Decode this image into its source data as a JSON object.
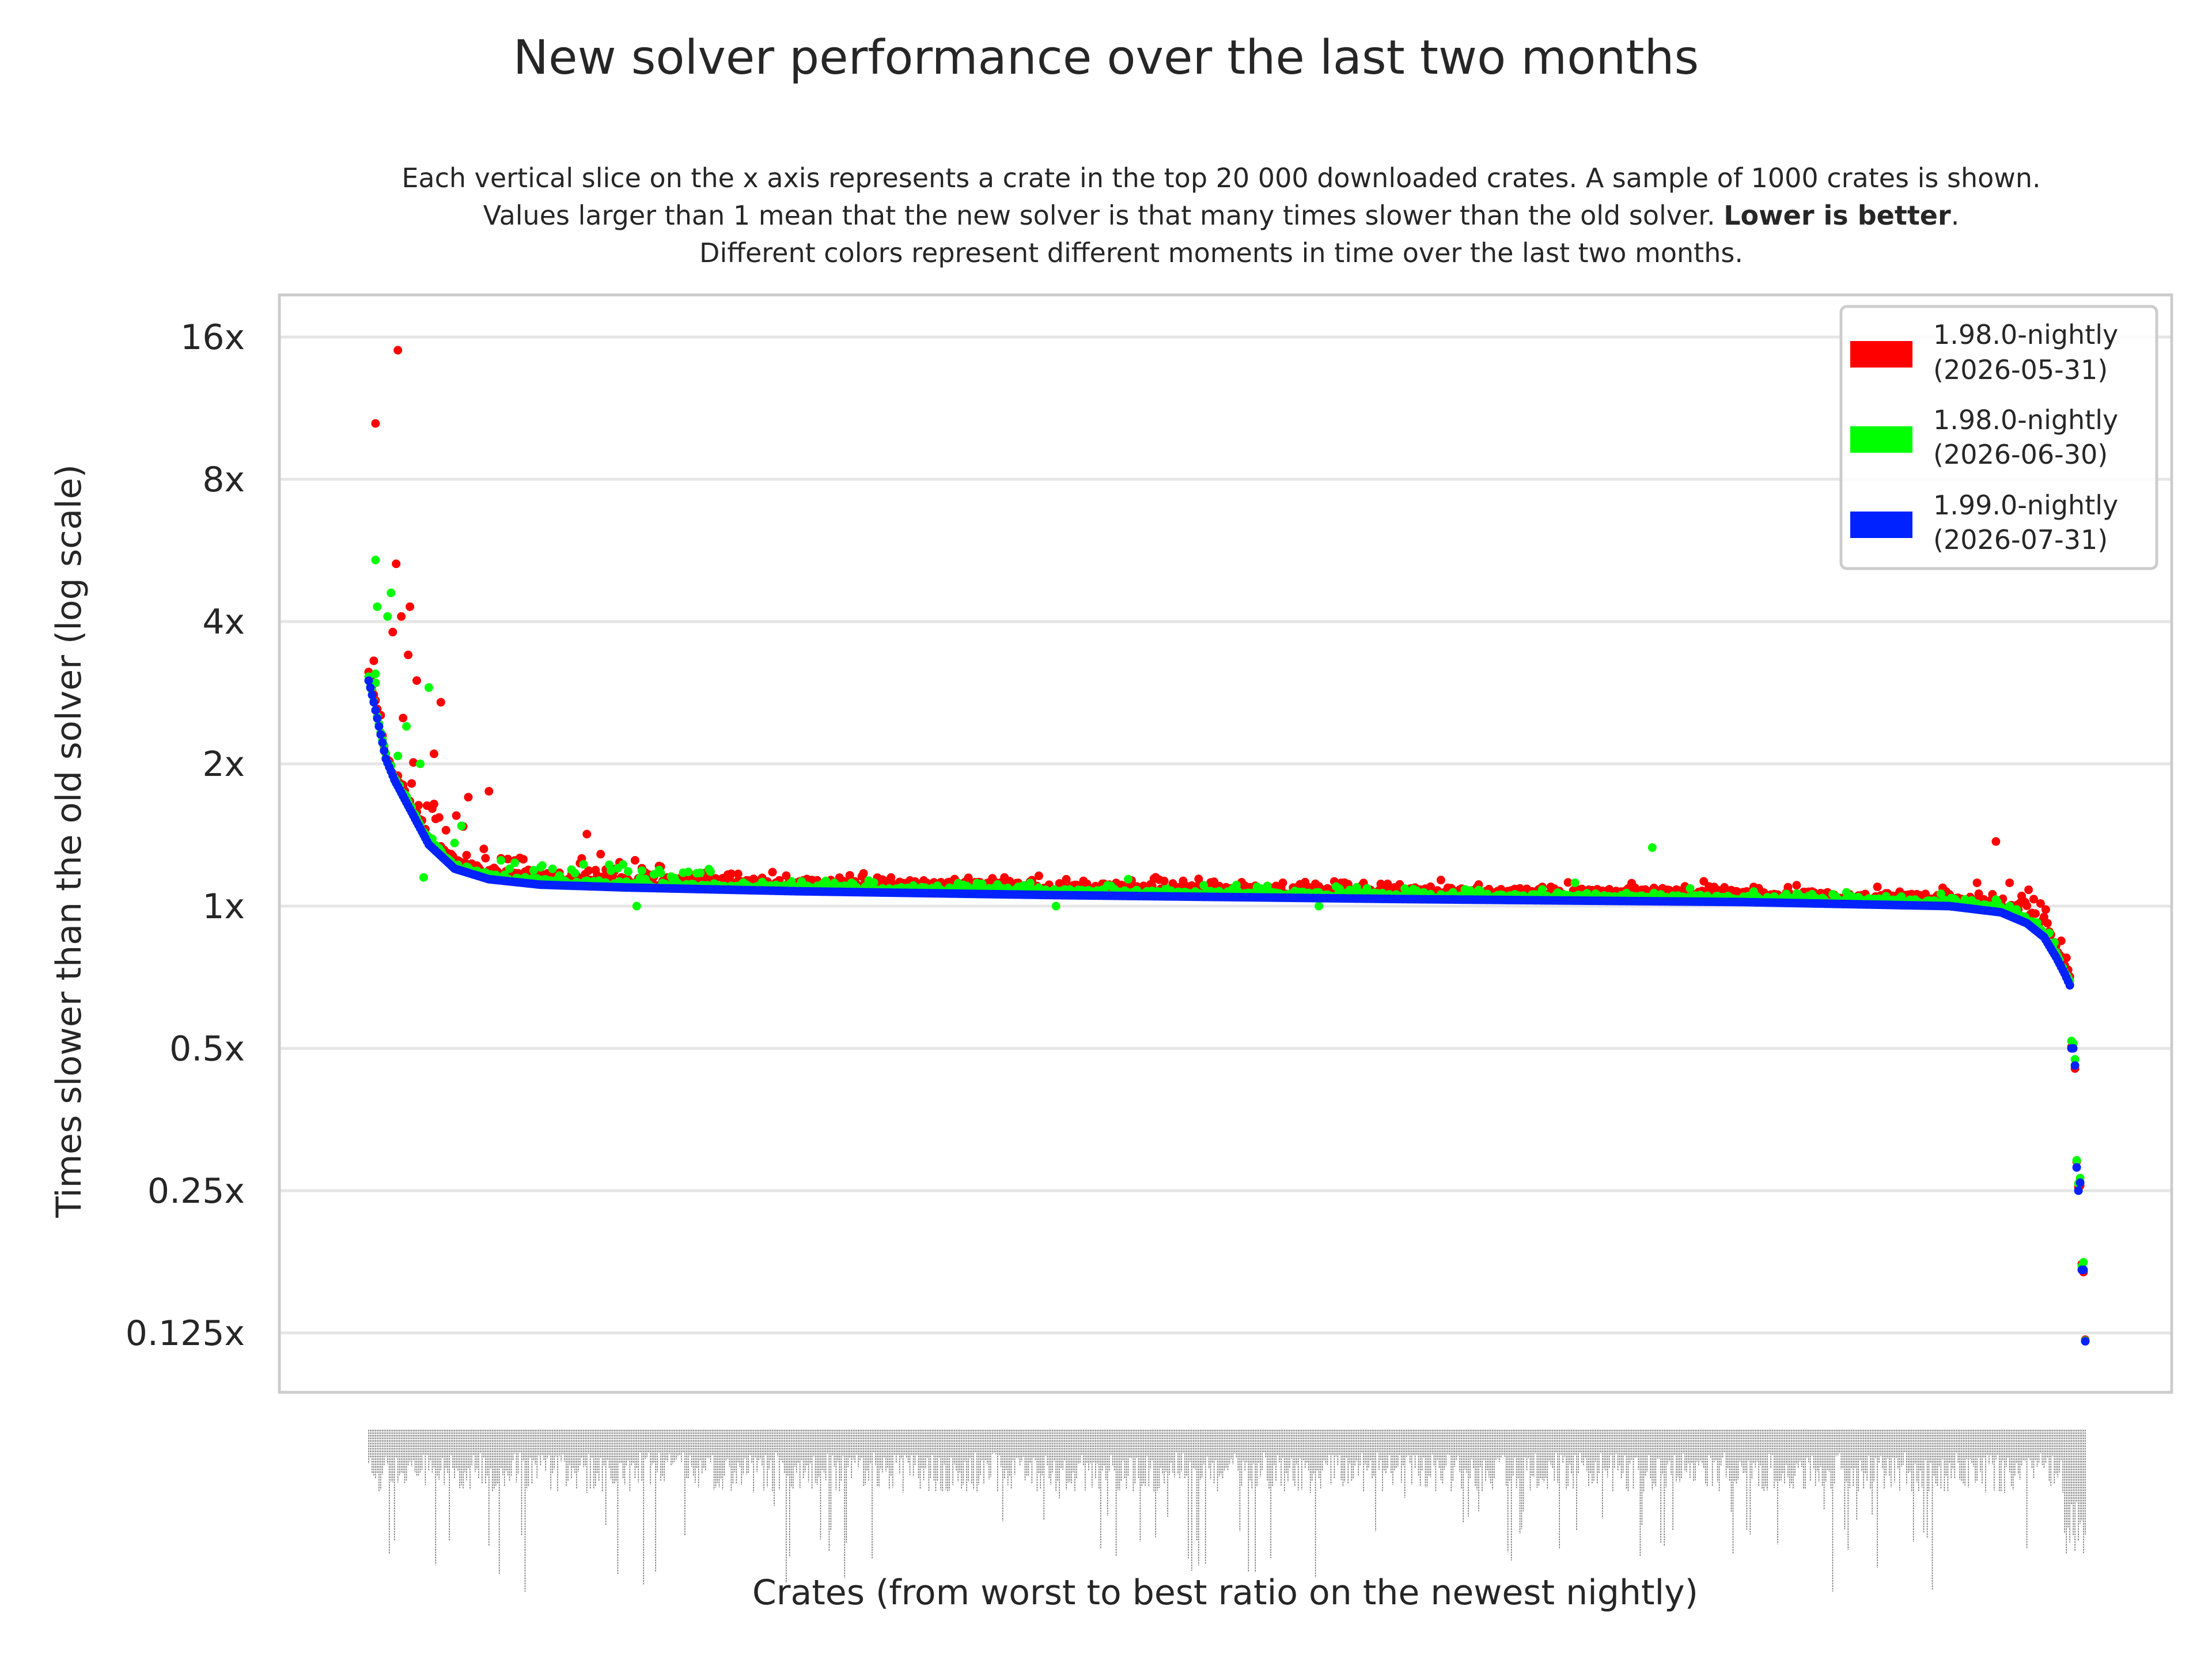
{
  "chart_data": {
    "type": "scatter",
    "title": "New solver performance over the last two months",
    "subtitle": {
      "line1": "Each vertical slice on the x axis represents a crate in the top 20 000 downloaded crates. A sample of 1000 crates is shown.",
      "line2_before": "Values larger than 1 mean that the new solver is that many times slower than the old solver. ",
      "line2_bold": "Lower is better",
      "line2_after": ".",
      "line3": "Different colors represent different moments in time over the last two months."
    },
    "xlabel": "Crates (from worst to best ratio on the newest nightly)",
    "ylabel": "Times slower than the old solver (log scale)",
    "yscale": "log2",
    "ylim": [
      0.1,
      20
    ],
    "yticks": [
      {
        "value": 16,
        "label": "16x"
      },
      {
        "value": 8,
        "label": "8x"
      },
      {
        "value": 4,
        "label": "4x"
      },
      {
        "value": 2,
        "label": "2x"
      },
      {
        "value": 1,
        "label": "1x"
      },
      {
        "value": 0.5,
        "label": "0.5x"
      },
      {
        "value": 0.25,
        "label": "0.25x"
      },
      {
        "value": 0.125,
        "label": "0.125x"
      }
    ],
    "grid": true,
    "legend_position": "top-right",
    "n_crates": 1000,
    "series": [
      {
        "name": "1.98.0-nightly (2026-05-31)",
        "legend_line1": "1.98.0-nightly",
        "legend_line2": "(2026-05-31)",
        "color": "#ff0000"
      },
      {
        "name": "1.98.0-nightly (2026-06-30)",
        "legend_line1": "1.98.0-nightly",
        "legend_line2": "(2026-06-30)",
        "color": "#00ff00"
      },
      {
        "name": "1.99.0-nightly (2026-07-31)",
        "legend_line1": "1.99.0-nightly",
        "legend_line2": "(2026-07-31)",
        "color": "#0022ff"
      }
    ],
    "baseline_profile": [
      [
        0,
        3.0
      ],
      [
        3,
        2.7
      ],
      [
        6,
        2.4
      ],
      [
        10,
        2.05
      ],
      [
        15,
        1.85
      ],
      [
        25,
        1.58
      ],
      [
        35,
        1.35
      ],
      [
        50,
        1.2
      ],
      [
        70,
        1.14
      ],
      [
        100,
        1.11
      ],
      [
        150,
        1.095
      ],
      [
        250,
        1.075
      ],
      [
        400,
        1.055
      ],
      [
        600,
        1.035
      ],
      [
        800,
        1.02
      ],
      [
        920,
        1.0
      ],
      [
        950,
        0.97
      ],
      [
        965,
        0.92
      ],
      [
        975,
        0.86
      ],
      [
        982,
        0.78
      ],
      [
        987,
        0.72
      ],
      [
        990,
        0.68
      ]
    ],
    "tail_points": [
      [
        991,
        0.5
      ],
      [
        992,
        0.5
      ],
      [
        993,
        0.46
      ],
      [
        994,
        0.28
      ],
      [
        995,
        0.25
      ],
      [
        996,
        0.26
      ],
      [
        997,
        0.17
      ],
      [
        998,
        0.17
      ],
      [
        999,
        0.12
      ]
    ],
    "notable_outliers": [
      {
        "series": 0,
        "x": 4,
        "y": 10.5
      },
      {
        "series": 0,
        "x": 17,
        "y": 15.0
      },
      {
        "series": 0,
        "x": 16,
        "y": 5.3
      },
      {
        "series": 1,
        "x": 4,
        "y": 5.4
      },
      {
        "series": 1,
        "x": 13,
        "y": 4.6
      },
      {
        "series": 0,
        "x": 24,
        "y": 4.3
      },
      {
        "series": 0,
        "x": 19,
        "y": 4.1
      },
      {
        "series": 1,
        "x": 5,
        "y": 4.3
      },
      {
        "series": 1,
        "x": 11,
        "y": 4.1
      },
      {
        "series": 0,
        "x": 14,
        "y": 3.8
      },
      {
        "series": 0,
        "x": 23,
        "y": 3.4
      },
      {
        "series": 0,
        "x": 28,
        "y": 3.0
      },
      {
        "series": 1,
        "x": 35,
        "y": 2.9
      },
      {
        "series": 0,
        "x": 42,
        "y": 2.7
      },
      {
        "series": 1,
        "x": 4,
        "y": 3.1
      },
      {
        "series": 0,
        "x": 3,
        "y": 2.8
      },
      {
        "series": 0,
        "x": 20,
        "y": 2.5
      },
      {
        "series": 1,
        "x": 22,
        "y": 2.4
      },
      {
        "series": 0,
        "x": 38,
        "y": 2.1
      },
      {
        "series": 1,
        "x": 30,
        "y": 2.0
      },
      {
        "series": 0,
        "x": 70,
        "y": 1.75
      },
      {
        "series": 0,
        "x": 58,
        "y": 1.7
      },
      {
        "series": 0,
        "x": 127,
        "y": 1.42
      },
      {
        "series": 0,
        "x": 155,
        "y": 1.25
      },
      {
        "series": 1,
        "x": 32,
        "y": 1.15
      },
      {
        "series": 1,
        "x": 156,
        "y": 1.0
      },
      {
        "series": 1,
        "x": 747,
        "y": 1.33
      },
      {
        "series": 0,
        "x": 947,
        "y": 1.37
      },
      {
        "series": 1,
        "x": 702,
        "y": 1.12
      },
      {
        "series": 1,
        "x": 442,
        "y": 1.14
      },
      {
        "series": 0,
        "x": 463,
        "y": 1.13
      },
      {
        "series": 0,
        "x": 532,
        "y": 1.12
      },
      {
        "series": 0,
        "x": 370,
        "y": 1.15
      },
      {
        "series": 0,
        "x": 215,
        "y": 1.17
      },
      {
        "series": 0,
        "x": 243,
        "y": 1.16
      },
      {
        "series": 0,
        "x": 936,
        "y": 1.12
      },
      {
        "series": 0,
        "x": 955,
        "y": 1.12
      },
      {
        "series": 0,
        "x": 962,
        "y": 1.05
      },
      {
        "series": 1,
        "x": 553,
        "y": 1.0
      },
      {
        "series": 1,
        "x": 400,
        "y": 1.0
      }
    ]
  }
}
